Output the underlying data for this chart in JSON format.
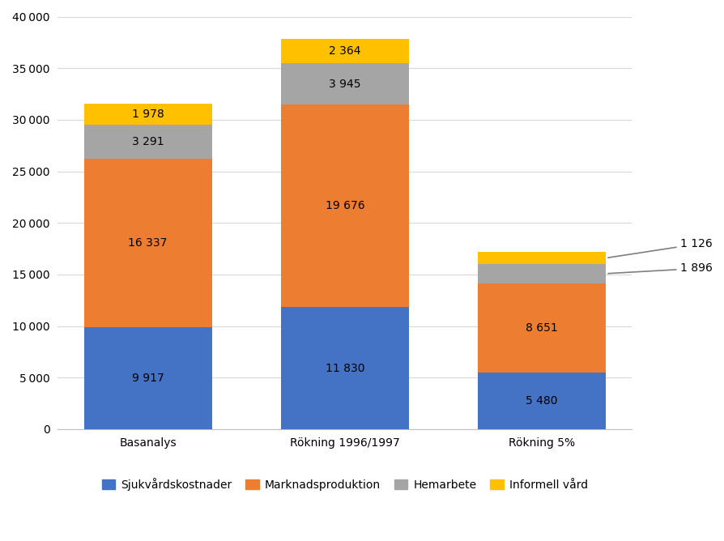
{
  "categories": [
    "Basanalys",
    "Rökning 1996/1997",
    "Rökning 5%"
  ],
  "series": {
    "Sjukvårdskostnader": [
      9917,
      11830,
      5480
    ],
    "Marknadsproduktion": [
      16337,
      19676,
      8651
    ],
    "Hemarbete": [
      3291,
      3945,
      1896
    ],
    "Informell vård": [
      1978,
      2364,
      1126
    ]
  },
  "colors": {
    "Sjukvårdskostnader": "#4472C4",
    "Marknadsproduktion": "#ED7D31",
    "Hemarbete": "#A5A5A5",
    "Informell vård": "#FFC000"
  },
  "labels": {
    "Sjukvårdskostnader": [
      "9 917",
      "11 830",
      "5 480"
    ],
    "Marknadsproduktion": [
      "16 337",
      "19 676",
      "8 651"
    ],
    "Hemarbete": [
      "3 291",
      "3 945",
      "1 896"
    ],
    "Informell vård": [
      "1 978",
      "2 364",
      "1 126"
    ]
  },
  "ylim": [
    0,
    40000
  ],
  "yticks": [
    0,
    5000,
    10000,
    15000,
    20000,
    25000,
    30000,
    35000,
    40000
  ],
  "bar_width": 0.65,
  "figsize": [
    8.94,
    6.68
  ],
  "dpi": 100,
  "background_color": "#FFFFFF",
  "grid_color": "#D9D9D9",
  "label_fontsize": 10,
  "tick_fontsize": 10,
  "legend_fontsize": 10
}
